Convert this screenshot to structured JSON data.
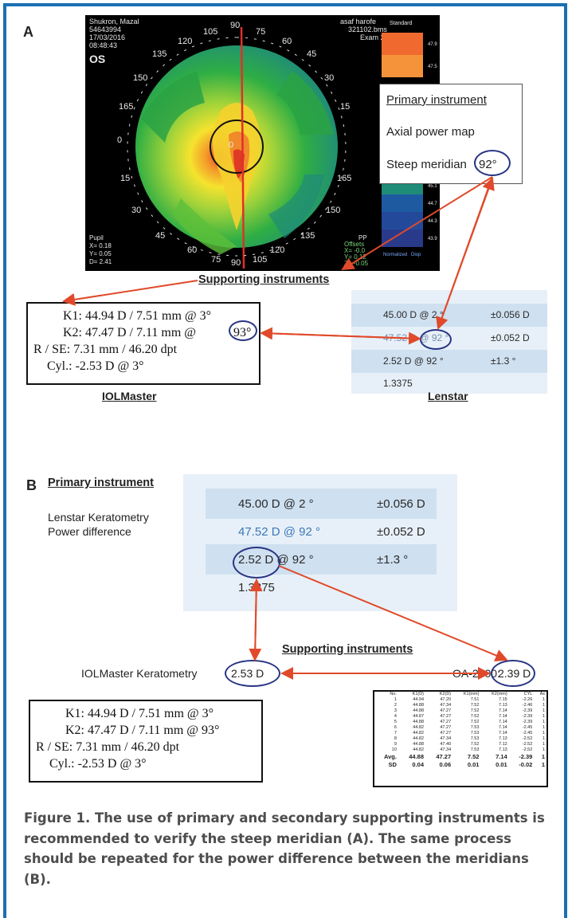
{
  "panel_a": {
    "letter": "A",
    "topography": {
      "header_left": [
        "Shukron, Mazal",
        "54643994",
        "17/03/2016",
        "08:48:43"
      ],
      "eye": "OS",
      "header_right": [
        "asaf harofe",
        "321102.bms",
        "Exam 2"
      ],
      "angles": [
        "105",
        "90",
        "75",
        "120",
        "60",
        "135",
        "45",
        "150",
        "30",
        "165",
        "15",
        "0",
        "0",
        "15",
        "165",
        "30",
        "150",
        "45",
        "135",
        "60",
        "120",
        "75",
        "90",
        "105"
      ],
      "footer_left": [
        "Pupil",
        "X= 0.18",
        "Y= 0.05",
        "D= 2.41"
      ],
      "footer_right": [
        "PP",
        "Offsets",
        "X= -0.0",
        "Y= 0.12",
        "Z= -0.05"
      ],
      "scale_header": "Standard",
      "scale_values": [
        "47.9",
        "47.5",
        "45.1",
        "44.7",
        "44.3",
        "43.9"
      ],
      "scale_footer_left": "Normalized",
      "scale_footer_right": "Diop"
    },
    "primary_box": {
      "title": "Primary instrument",
      "line2": "Axial power map",
      "line3_prefix": "Steep meridian",
      "line3_value": "92°"
    },
    "supporting_label": "Supporting  instruments",
    "iolmaster": {
      "k1": "K1:  44.94 D / 7.51 mm @ 3°",
      "k2_prefix": "K2:  47.47 D / 7.11 mm @",
      "k2_value": "93°",
      "rse": "R / SE:  7.31 mm / 46.20 dpt",
      "cyl": "Cyl.:  -2.53 D @ 3°",
      "label": "IOLMaster"
    },
    "lenstar": {
      "rows": [
        {
          "left": "45.00 D @ 2 °",
          "right": "±0.056 D"
        },
        {
          "left": "47.52 D @ 92 °",
          "right": "±0.052 D"
        },
        {
          "left": "2.52 D @ 92 °",
          "right": "±1.3 °"
        },
        {
          "left": "1.3375",
          "right": ""
        }
      ],
      "circled": "92 °",
      "label": "Lenstar"
    }
  },
  "panel_b": {
    "letter": "B",
    "primary_title": "Primary instrument",
    "primary_line1": "Lenstar Keratometry",
    "primary_line2": "Power difference",
    "lenstar_rows": [
      {
        "left": "45.00 D @ 2 °",
        "right": "±0.056 D"
      },
      {
        "left": "47.52 D @ 92 °",
        "right": "±0.052 D"
      },
      {
        "left": "2.52 D @ 92 °",
        "right": "±1.3 °"
      },
      {
        "left": "1.3375",
        "right": ""
      }
    ],
    "lenstar_circled": "2.52 D",
    "supporting_label": "Supporting  instruments",
    "iol_kera_prefix": "IOLMaster Keratometry",
    "iol_kera_value": "2.53 D",
    "oa_prefix": "OA-2000:",
    "oa_value": "2.39 D",
    "iolmaster": {
      "k1": "K1:  44.94 D / 7.51 mm @ 3°",
      "k2": "K2:  47.47 D / 7.11 mm @ 93°",
      "rse": "R / SE:  7.31 mm / 46.20 dpt",
      "cyl": "Cyl.:  -2.53 D @ 3°"
    },
    "oa_table": {
      "header": [
        "No.",
        "K1(D)",
        "K2(D)",
        "K1(mm)",
        "K2(mm)",
        "CYL",
        "Ax"
      ],
      "rows": [
        [
          "1",
          "44.94",
          "47.20",
          "7.51",
          "7.15",
          "-2.26",
          "1"
        ],
        [
          "2",
          "44.88",
          "47.34",
          "7.52",
          "7.13",
          "-2.46",
          "1"
        ],
        [
          "3",
          "44.88",
          "47.27",
          "7.52",
          "7.14",
          "-2.39",
          "1"
        ],
        [
          "4",
          "44.87",
          "47.27",
          "7.52",
          "7.14",
          "-2.39",
          "1"
        ],
        [
          "5",
          "44.88",
          "47.27",
          "7.52",
          "7.14",
          "-2.39",
          "1"
        ],
        [
          "6",
          "44.82",
          "47.27",
          "7.53",
          "7.14",
          "-2.45",
          "1"
        ],
        [
          "7",
          "44.82",
          "47.27",
          "7.53",
          "7.14",
          "-2.45",
          "1"
        ],
        [
          "8",
          "44.82",
          "47.34",
          "7.53",
          "7.13",
          "-2.52",
          "1"
        ],
        [
          "9",
          "44.88",
          "47.40",
          "7.52",
          "7.12",
          "-2.52",
          "1"
        ],
        [
          "10",
          "44.82",
          "47.34",
          "7.53",
          "7.13",
          "-2.52",
          "1"
        ]
      ],
      "avg": [
        "Avg.",
        "44.88",
        "47.27",
        "7.52",
        "7.14",
        "-2.39",
        "1"
      ],
      "sd": [
        "SD",
        "0.04",
        "0.06",
        "0.01",
        "0.01",
        "-0.02",
        "1"
      ]
    }
  },
  "caption": "Figure 1.  The use of primary and secondary supporting instruments is recommended to verify the steep meridian (A). The same process should be repeated for the power difference between the meridians (B).",
  "colors": {
    "frame": "#1a6fb3",
    "arrow": "#e04a2a",
    "circle": "#283583",
    "lenstar_bg": "#e7f0f8",
    "lenstar_row": "#cfe0f0"
  }
}
